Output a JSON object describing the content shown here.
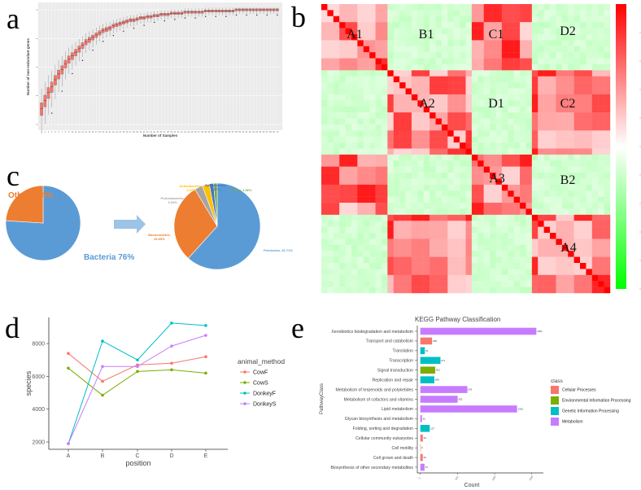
{
  "panels": {
    "a": "a",
    "b": "b",
    "c": "c",
    "d": "d",
    "e": "e"
  },
  "chart_data": [
    {
      "id": "a",
      "type": "box",
      "xlabel": "Number of Samples",
      "ylabel": "Number of non-redundant genes",
      "n_samples": 70,
      "median_fraction_of_axis": [
        0.14,
        0.21,
        0.28,
        0.33,
        0.39,
        0.44,
        0.48,
        0.53,
        0.57,
        0.6,
        0.63,
        0.66,
        0.69,
        0.72,
        0.74,
        0.76,
        0.78,
        0.8,
        0.82,
        0.83,
        0.84,
        0.86,
        0.87,
        0.88,
        0.89,
        0.9,
        0.91,
        0.91,
        0.92,
        0.93,
        0.93,
        0.94,
        0.94,
        0.95,
        0.95,
        0.96,
        0.96,
        0.96,
        0.97,
        0.97,
        0.97,
        0.97,
        0.98,
        0.98,
        0.98,
        0.98,
        0.98,
        0.98,
        0.99,
        0.99,
        0.99,
        0.99,
        0.99,
        0.99,
        0.99,
        0.99,
        0.99,
        1,
        1,
        1,
        1,
        1,
        1,
        1,
        1,
        1,
        1,
        1,
        1,
        1
      ],
      "box_color": "#F8766D",
      "background": "#EBEBEB"
    },
    {
      "id": "b",
      "type": "heatmap",
      "group_fractions": [
        0.23,
        0.29,
        0.2,
        0.28
      ],
      "related_groups": [
        [
          0,
          2
        ],
        [
          1,
          3
        ]
      ],
      "block_labels": [
        "A1",
        "B1",
        "C1",
        "D2",
        "A2",
        "D1",
        "C2",
        "A3",
        "B2",
        "A4"
      ],
      "colorscale": [
        "#00FF00",
        "#FFFFFF",
        "#FF0000"
      ]
    },
    {
      "id": "c1",
      "type": "pie",
      "slices": [
        {
          "label": "Bacteria 76%",
          "value": 76,
          "color": "#5B9BD5"
        },
        {
          "label": "Others 24%",
          "value": 24,
          "color": "#ED7D31"
        }
      ]
    },
    {
      "id": "c2",
      "type": "pie",
      "slices": [
        {
          "name": "Firmicutes,",
          "pct": "61.71%",
          "value": 61.71,
          "color": "#5B9BD5"
        },
        {
          "name": "Bacteroidetes,",
          "pct": "29.65%",
          "value": 29.65,
          "color": "#ED7D31"
        },
        {
          "name": "Proteobacteria,",
          "pct": "3.04%",
          "value": 3.04,
          "color": "#A5A5A5"
        },
        {
          "name": "Actinobacteria,",
          "pct": "2.67%",
          "value": 2.67,
          "color": "#FFC000"
        },
        {
          "name": "Spirochaetes,",
          "pct": "1.57%",
          "value": 1.57,
          "color": "#4472C4"
        },
        {
          "name": "Others,",
          "pct": "1.36%",
          "value": 1.36,
          "color": "#70AD47"
        }
      ]
    },
    {
      "id": "d",
      "type": "line",
      "xlabel": "position",
      "ylabel": "species",
      "categories": [
        "A",
        "B",
        "C",
        "D",
        "E"
      ],
      "yticks": [
        2000,
        4000,
        6000,
        8000
      ],
      "ylim": [
        1550,
        9600
      ],
      "legend_title": "animal_method",
      "legend_position": "right",
      "series": [
        {
          "name": "CowF",
          "color": "#F8766D",
          "values": [
            7400,
            5700,
            6700,
            6800,
            7200
          ]
        },
        {
          "name": "CowS",
          "color": "#7CAE00",
          "values": [
            6500,
            4850,
            6300,
            6400,
            6200
          ]
        },
        {
          "name": "DonkeyF",
          "color": "#00BFC4",
          "values": [
            1900,
            8150,
            7000,
            9250,
            9100
          ]
        },
        {
          "name": "DonkeyS",
          "color": "#C77CFF",
          "values": [
            1900,
            6600,
            6600,
            7850,
            8500
          ]
        }
      ]
    },
    {
      "id": "e",
      "type": "bar",
      "orientation": "horizontal",
      "title": "KEGG Pathway Classification",
      "xlabel": "Count",
      "ylabel": "PathwayClass",
      "xticks": [
        "0",
        "500",
        "1000",
        "1500"
      ],
      "legend_title": "class",
      "legend_position": "right",
      "classes": [
        {
          "name": "Cellular Processes",
          "color": "#F8766D"
        },
        {
          "name": "Environmental Information Processing",
          "color": "#7CAE00"
        },
        {
          "name": "Genetic Information Processing",
          "color": "#00BFC4"
        },
        {
          "name": "Metabolism",
          "color": "#C77CFF"
        }
      ],
      "bars": [
        {
          "label": "Xenobiotics biodegradation and metabolism",
          "value": 1561,
          "class": 3
        },
        {
          "label": "Transport and catabolism",
          "value": 158,
          "class": 0
        },
        {
          "label": "Translation",
          "value": 61,
          "class": 2
        },
        {
          "label": "Transcription",
          "value": 271,
          "class": 2
        },
        {
          "label": "Signal transduction",
          "value": 201,
          "class": 1
        },
        {
          "label": "Replication and repair",
          "value": 189,
          "class": 2
        },
        {
          "label": "Metabolism of terpenoids and polyketides",
          "value": 633,
          "class": 3
        },
        {
          "label": "Metabolism of cofactors and vitamins",
          "value": 502,
          "class": 3
        },
        {
          "label": "Lipid metabolism",
          "value": 1301,
          "class": 3
        },
        {
          "label": "Glycan biosynthesis and metabolism",
          "value": 22,
          "class": 3
        },
        {
          "label": "Folding, sorting and degradation",
          "value": 127,
          "class": 2
        },
        {
          "label": "Cellular community eukaryotes",
          "value": 34,
          "class": 0
        },
        {
          "label": "Cell motility",
          "value": 3,
          "class": 0
        },
        {
          "label": "Cell grown and death",
          "value": 33,
          "class": 0
        },
        {
          "label": "Biosynthesis of other secondary metabolites",
          "value": 57,
          "class": 3
        }
      ]
    }
  ]
}
